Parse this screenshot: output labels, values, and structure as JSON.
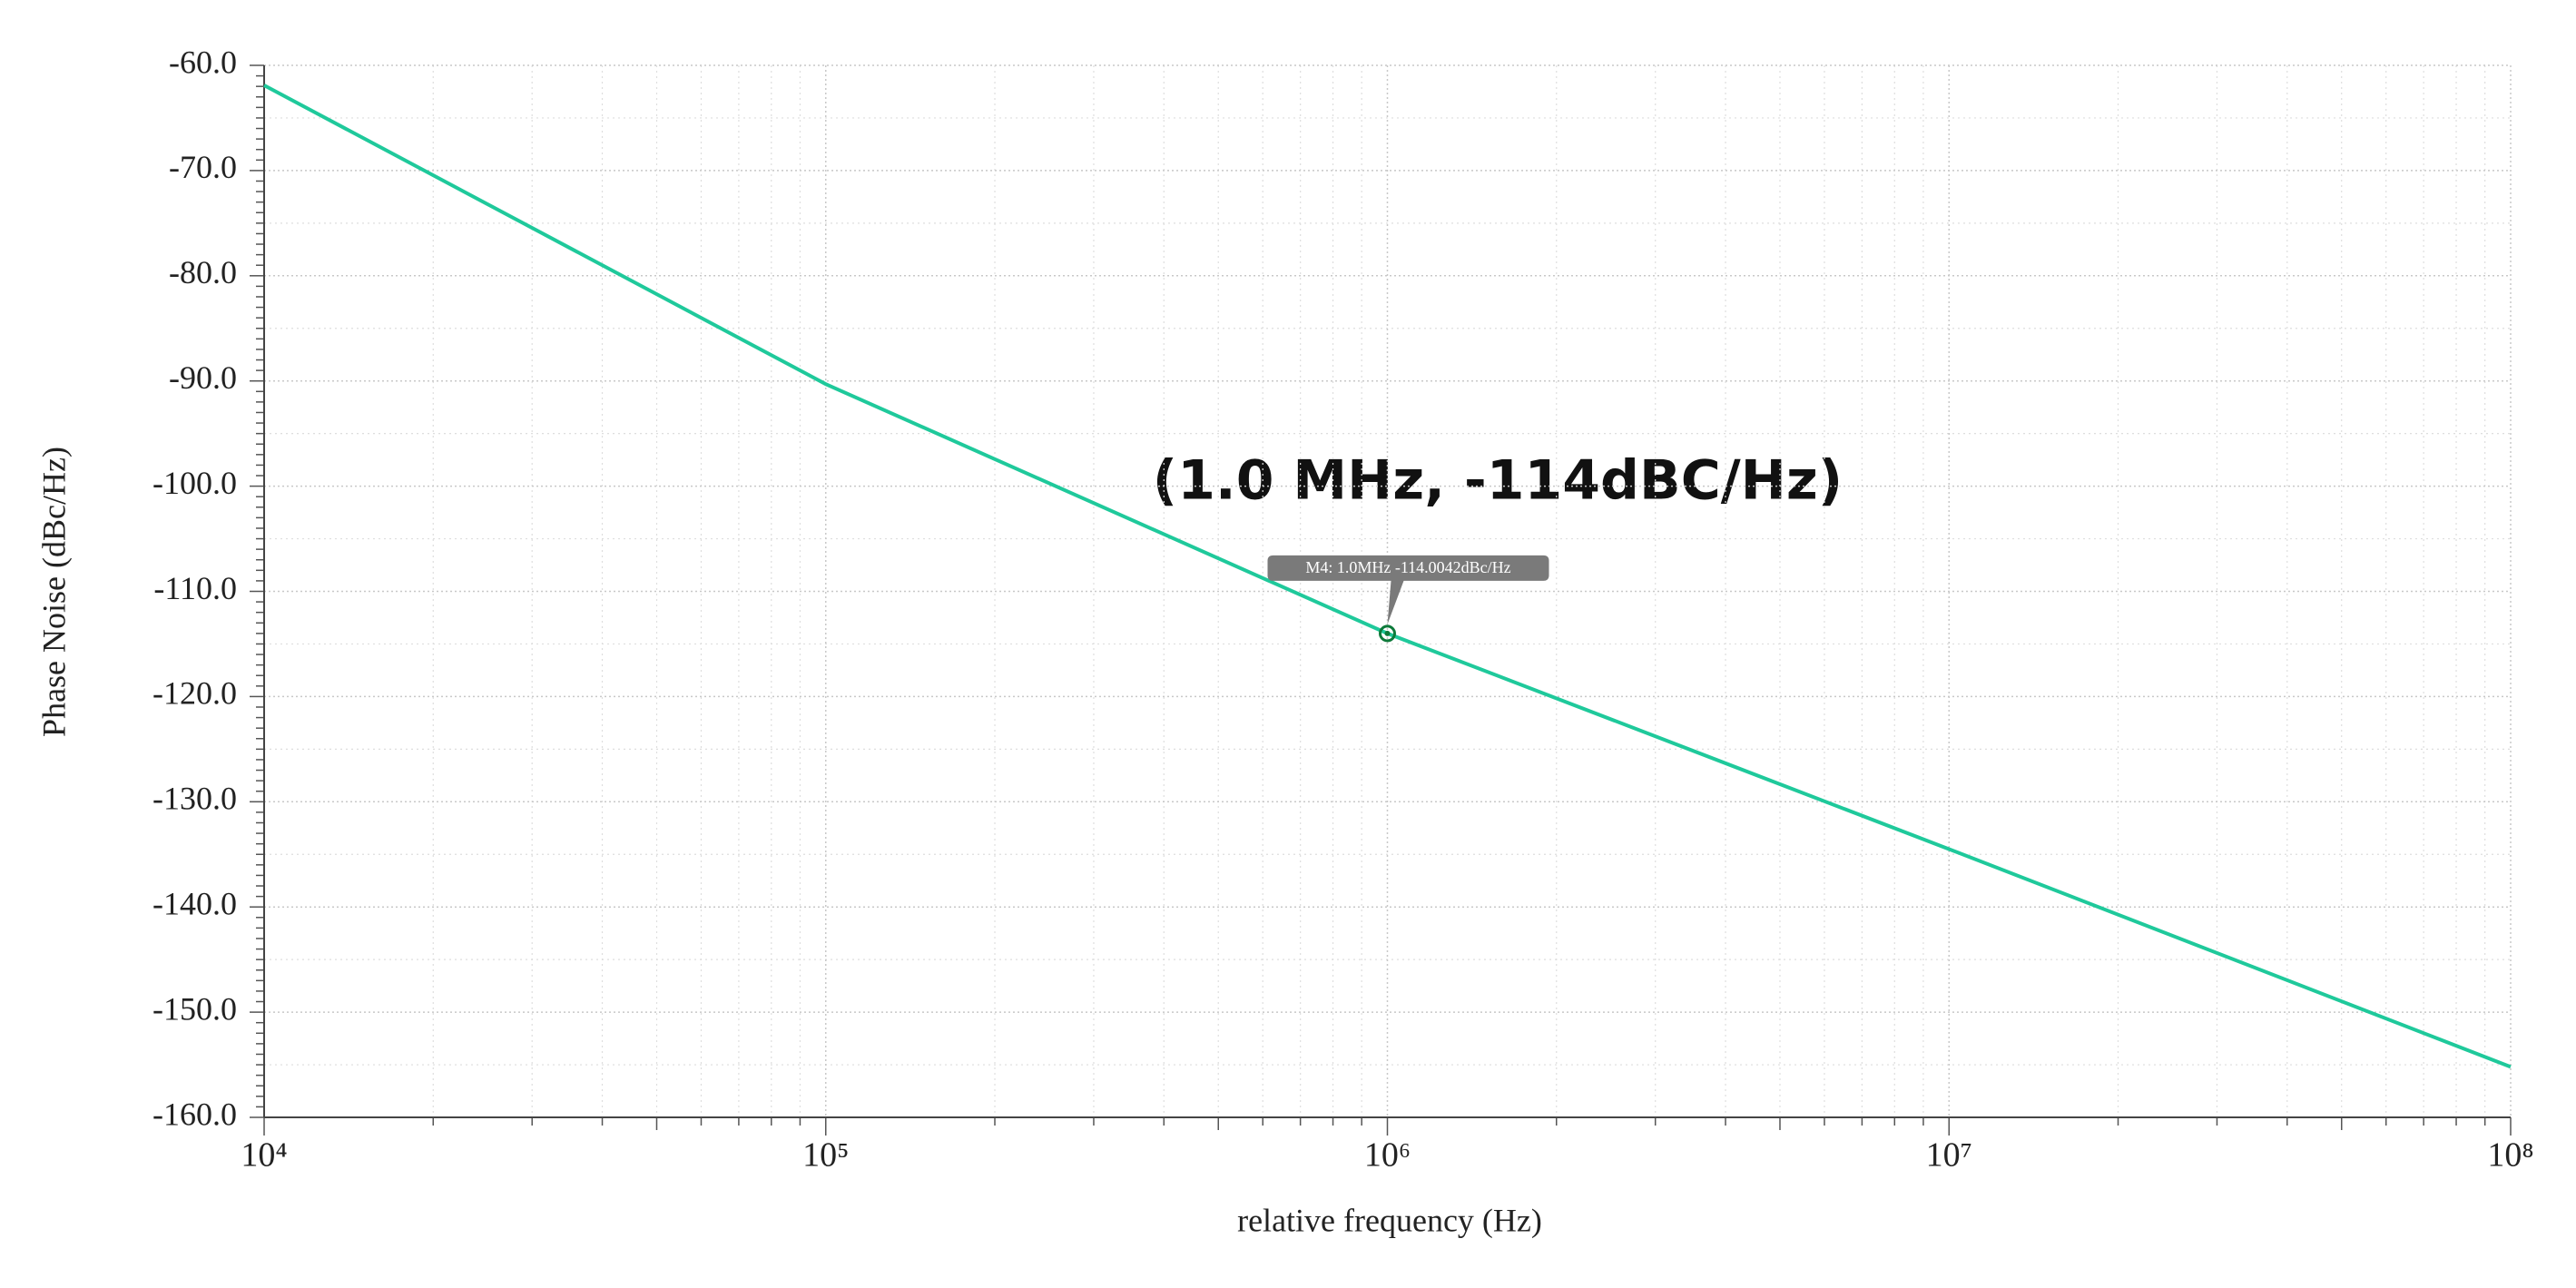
{
  "chart_data": {
    "type": "line",
    "xlabel": "relative frequency (Hz)",
    "ylabel": "Phase Noise (dBc/Hz)",
    "xscale": "log",
    "grid": true,
    "xlim": [
      10000,
      100000000
    ],
    "ylim": [
      -160,
      -60
    ],
    "xticks": [
      {
        "value": 10000,
        "label": "10⁴"
      },
      {
        "value": 100000,
        "label": "10⁵"
      },
      {
        "value": 1000000,
        "label": "10⁶"
      },
      {
        "value": 10000000,
        "label": "10⁷"
      },
      {
        "value": 100000000,
        "label": "10⁸"
      }
    ],
    "yticks": [
      {
        "value": -160,
        "label": "-160.0"
      },
      {
        "value": -150,
        "label": "-150.0"
      },
      {
        "value": -140,
        "label": "-140.0"
      },
      {
        "value": -130,
        "label": "-130.0"
      },
      {
        "value": -120,
        "label": "-120.0"
      },
      {
        "value": -110,
        "label": "-110.0"
      },
      {
        "value": -100,
        "label": "-100.0"
      },
      {
        "value": -90,
        "label": "-90.0"
      },
      {
        "value": -80,
        "label": "-80.0"
      },
      {
        "value": -70,
        "label": "-70.0"
      },
      {
        "value": -60,
        "label": "-60.0"
      }
    ],
    "series": [
      {
        "color": "#1fc99b",
        "x": [
          10000,
          100000,
          1000000,
          10000000,
          100000000
        ],
        "values": [
          -61.9,
          -90.3,
          -114.0,
          -134.5,
          -155.2
        ]
      }
    ],
    "markers": [
      {
        "label": "M4: 1.0MHz -114.0042dBc/Hz",
        "x": 1000000,
        "y": -114.0042
      }
    ],
    "annotation": "(1.0 MHz, -114dBC/Hz)"
  }
}
